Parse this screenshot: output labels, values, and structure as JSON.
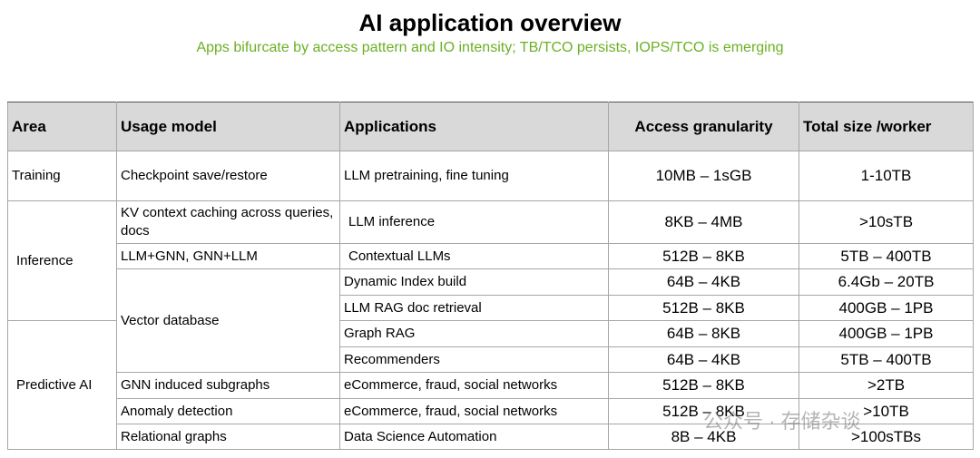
{
  "header": {
    "title": "AI application overview",
    "subtitle": "Apps bifurcate by access pattern and IO intensity; TB/TCO persists, IOPS/TCO is emerging"
  },
  "table": {
    "columns": [
      "Area",
      "Usage model",
      "Applications",
      "Access granularity",
      "Total size /worker"
    ],
    "rows": [
      [
        "Training",
        "Checkpoint save/restore",
        "LLM pretraining, fine tuning",
        "10MB – 1sGB",
        "1-10TB"
      ],
      [
        "Inference",
        "KV context caching across queries, docs",
        "LLM inference",
        "8KB – 4MB",
        ">10sTB"
      ],
      [
        "LLM+GNN, GNN+LLM",
        "Contextual LLMs",
        "512B – 8KB",
        "5TB – 400TB"
      ],
      [
        "Vector database",
        "Dynamic Index build",
        "64B – 4KB",
        "6.4Gb – 20TB"
      ],
      [
        "LLM RAG doc retrieval",
        "512B – 8KB",
        "400GB – 1PB"
      ],
      [
        "Predictive AI",
        "Graph RAG",
        "64B – 8KB",
        "400GB – 1PB"
      ],
      [
        "Recommenders",
        "64B – 4KB",
        "5TB – 400TB"
      ],
      [
        "GNN induced subgraphs",
        "eCommerce, fraud, social networks",
        "512B – 8KB",
        ">2TB"
      ],
      [
        "Anomaly detection",
        "eCommerce, fraud, social networks",
        "512B – 8KB",
        ">10TB"
      ],
      [
        "Relational graphs",
        "Data Science Automation",
        "8B – 4KB",
        ">100sTBs"
      ]
    ]
  },
  "watermark": "公众号 · 存储杂谈"
}
